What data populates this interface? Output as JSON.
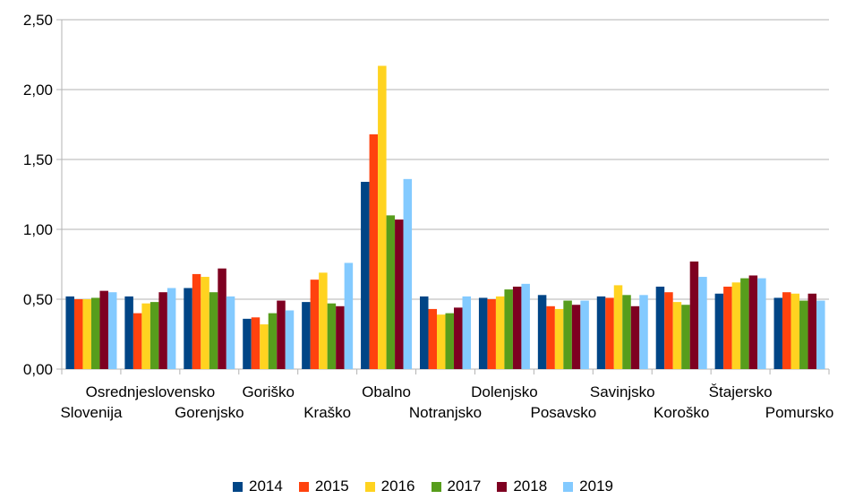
{
  "chart_data": {
    "type": "bar",
    "title": "",
    "xlabel": "",
    "ylabel": "",
    "ylim": [
      0,
      2.5
    ],
    "yticks": [
      "0,00",
      "0,50",
      "1,00",
      "1,50",
      "2,00",
      "2,50"
    ],
    "grid": true,
    "legend_position": "bottom",
    "categories": [
      "Slovenija",
      "Osrednjeslovensko",
      "Gorenjsko",
      "Goriško",
      "Kraško",
      "Obalno",
      "Notranjsko",
      "Dolenjsko",
      "Posavsko",
      "Savinjsko",
      "Koroško",
      "Štajersko",
      "Pomursko"
    ],
    "series": [
      {
        "name": "2014",
        "color": "#004586",
        "values": [
          0.52,
          0.52,
          0.58,
          0.36,
          0.48,
          1.34,
          0.52,
          0.51,
          0.53,
          0.52,
          0.59,
          0.54,
          0.51
        ]
      },
      {
        "name": "2015",
        "color": "#ff420e",
        "values": [
          0.5,
          0.4,
          0.68,
          0.37,
          0.64,
          1.68,
          0.43,
          0.5,
          0.45,
          0.51,
          0.55,
          0.59,
          0.55
        ]
      },
      {
        "name": "2016",
        "color": "#ffd320",
        "values": [
          0.5,
          0.47,
          0.66,
          0.32,
          0.69,
          2.17,
          0.39,
          0.52,
          0.43,
          0.6,
          0.48,
          0.62,
          0.54
        ]
      },
      {
        "name": "2017",
        "color": "#579d1c",
        "values": [
          0.51,
          0.48,
          0.55,
          0.4,
          0.47,
          1.1,
          0.4,
          0.57,
          0.49,
          0.53,
          0.46,
          0.65,
          0.49
        ]
      },
      {
        "name": "2018",
        "color": "#7e0021",
        "values": [
          0.56,
          0.55,
          0.72,
          0.49,
          0.45,
          1.07,
          0.44,
          0.59,
          0.46,
          0.45,
          0.77,
          0.67,
          0.54
        ]
      },
      {
        "name": "2019",
        "color": "#83caff",
        "values": [
          0.55,
          0.58,
          0.52,
          0.42,
          0.76,
          1.36,
          0.52,
          0.61,
          0.49,
          0.53,
          0.66,
          0.65,
          0.49
        ]
      }
    ]
  }
}
